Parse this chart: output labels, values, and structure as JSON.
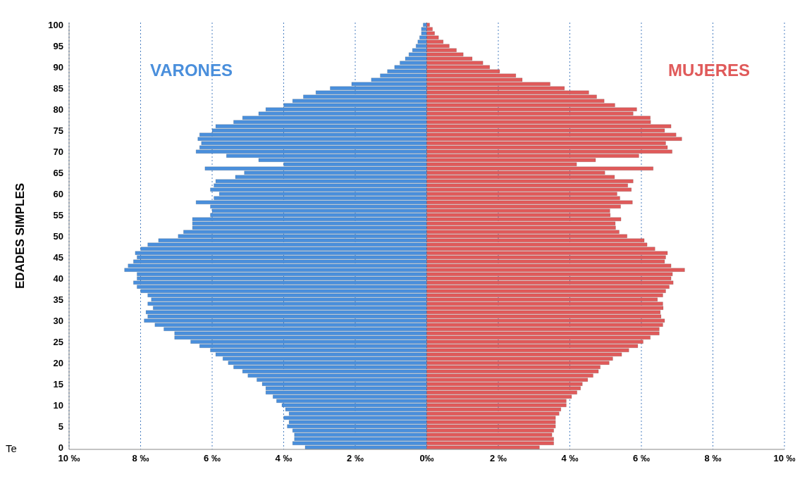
{
  "chart_data": {
    "type": "bar",
    "orientation": "horizontal",
    "stacked": true,
    "ylabel": "EDADES SIMPLES",
    "annotations": [
      "Te"
    ],
    "categories": [
      "100",
      null,
      null,
      null,
      null,
      "95",
      null,
      null,
      null,
      null,
      "90",
      null,
      null,
      null,
      null,
      "85",
      null,
      null,
      null,
      null,
      "80",
      null,
      null,
      null,
      null,
      "75",
      null,
      null,
      null,
      null,
      "70",
      null,
      null,
      null,
      null,
      "65",
      null,
      null,
      null,
      null,
      "60",
      null,
      null,
      null,
      null,
      "55",
      null,
      null,
      null,
      null,
      "50",
      null,
      null,
      null,
      null,
      "45",
      null,
      null,
      null,
      null,
      "40",
      null,
      null,
      null,
      null,
      "35",
      null,
      null,
      null,
      null,
      "30",
      null,
      null,
      null,
      null,
      "25",
      null,
      null,
      null,
      null,
      "20",
      null,
      null,
      null,
      null,
      "15",
      null,
      null,
      null,
      null,
      "10",
      null,
      null,
      null,
      null,
      "5",
      null,
      null,
      null,
      null,
      "0"
    ],
    "series": [
      {
        "name": "VARONES",
        "color": "#4a8fdc",
        "values": [
          -0.1,
          -0.15,
          -0.15,
          -0.2,
          -0.25,
          -0.3,
          -0.4,
          -0.5,
          -0.6,
          -0.75,
          -0.9,
          -1.1,
          -1.3,
          -1.55,
          -2.1,
          -2.7,
          -3.1,
          -3.45,
          -3.75,
          -4.0,
          -4.5,
          -4.7,
          -5.15,
          -5.4,
          -5.9,
          -6.0,
          -6.35,
          -6.4,
          -6.3,
          -6.35,
          -6.45,
          -5.6,
          -4.7,
          -4.0,
          -6.2,
          -5.1,
          -5.35,
          -5.9,
          -5.95,
          -6.05,
          -5.8,
          -5.95,
          -6.45,
          -6.05,
          -6.0,
          -6.05,
          -6.55,
          -6.55,
          -6.55,
          -6.8,
          -6.95,
          -7.5,
          -7.8,
          -8.0,
          -8.15,
          -8.1,
          -8.2,
          -8.35,
          -8.45,
          -8.1,
          -8.1,
          -8.2,
          -8.1,
          -8.0,
          -7.8,
          -7.7,
          -7.8,
          -7.65,
          -7.85,
          -7.8,
          -7.9,
          -7.6,
          -7.35,
          -7.05,
          -7.05,
          -6.6,
          -6.35,
          -6.05,
          -5.9,
          -5.7,
          -5.55,
          -5.4,
          -5.15,
          -5.0,
          -4.75,
          -4.6,
          -4.5,
          -4.5,
          -4.3,
          -4.2,
          -4.05,
          -3.95,
          -3.85,
          -4.0,
          -3.85,
          -3.9,
          -3.75,
          -3.7,
          -3.7,
          -3.75,
          -3.4
        ]
      },
      {
        "name": "MUJERES",
        "color": "#e05a5a",
        "values": [
          0.08,
          0.16,
          0.22,
          0.33,
          0.46,
          0.63,
          0.83,
          1.02,
          1.27,
          1.57,
          1.76,
          2.04,
          2.49,
          2.67,
          3.45,
          3.85,
          4.53,
          4.75,
          4.96,
          5.26,
          5.87,
          5.77,
          6.25,
          6.26,
          6.83,
          6.65,
          6.97,
          7.13,
          6.68,
          6.73,
          6.86,
          5.93,
          4.72,
          4.19,
          6.33,
          4.98,
          5.25,
          5.77,
          5.62,
          5.72,
          5.32,
          5.4,
          5.75,
          5.42,
          5.12,
          5.13,
          5.43,
          5.27,
          5.28,
          5.38,
          5.6,
          6.08,
          6.16,
          6.38,
          6.73,
          6.68,
          6.65,
          6.83,
          7.21,
          6.87,
          6.83,
          6.89,
          6.78,
          6.68,
          6.6,
          6.45,
          6.6,
          6.61,
          6.53,
          6.55,
          6.65,
          6.6,
          6.5,
          6.5,
          6.25,
          6.05,
          5.9,
          5.65,
          5.45,
          5.2,
          5.1,
          4.85,
          4.8,
          4.65,
          4.5,
          4.35,
          4.3,
          4.2,
          4.05,
          3.9,
          3.9,
          3.75,
          3.7,
          3.6,
          3.6,
          3.6,
          3.55,
          3.5,
          3.55,
          3.55,
          3.15
        ]
      }
    ],
    "xlim": [
      -10,
      10
    ],
    "xticks": [
      {
        "value": -10,
        "label": "10 ‰"
      },
      {
        "value": -8,
        "label": "8 ‰"
      },
      {
        "value": -6,
        "label": "6 ‰"
      },
      {
        "value": -4,
        "label": "4 ‰"
      },
      {
        "value": -2,
        "label": "2 ‰"
      },
      {
        "value": 0,
        "label": "0‰"
      },
      {
        "value": 2,
        "label": "2 ‰"
      },
      {
        "value": 4,
        "label": "4 ‰"
      },
      {
        "value": 6,
        "label": "6 ‰"
      },
      {
        "value": 8,
        "label": "8 ‰"
      },
      {
        "value": 10,
        "label": "10 ‰"
      }
    ],
    "grid": "x"
  }
}
